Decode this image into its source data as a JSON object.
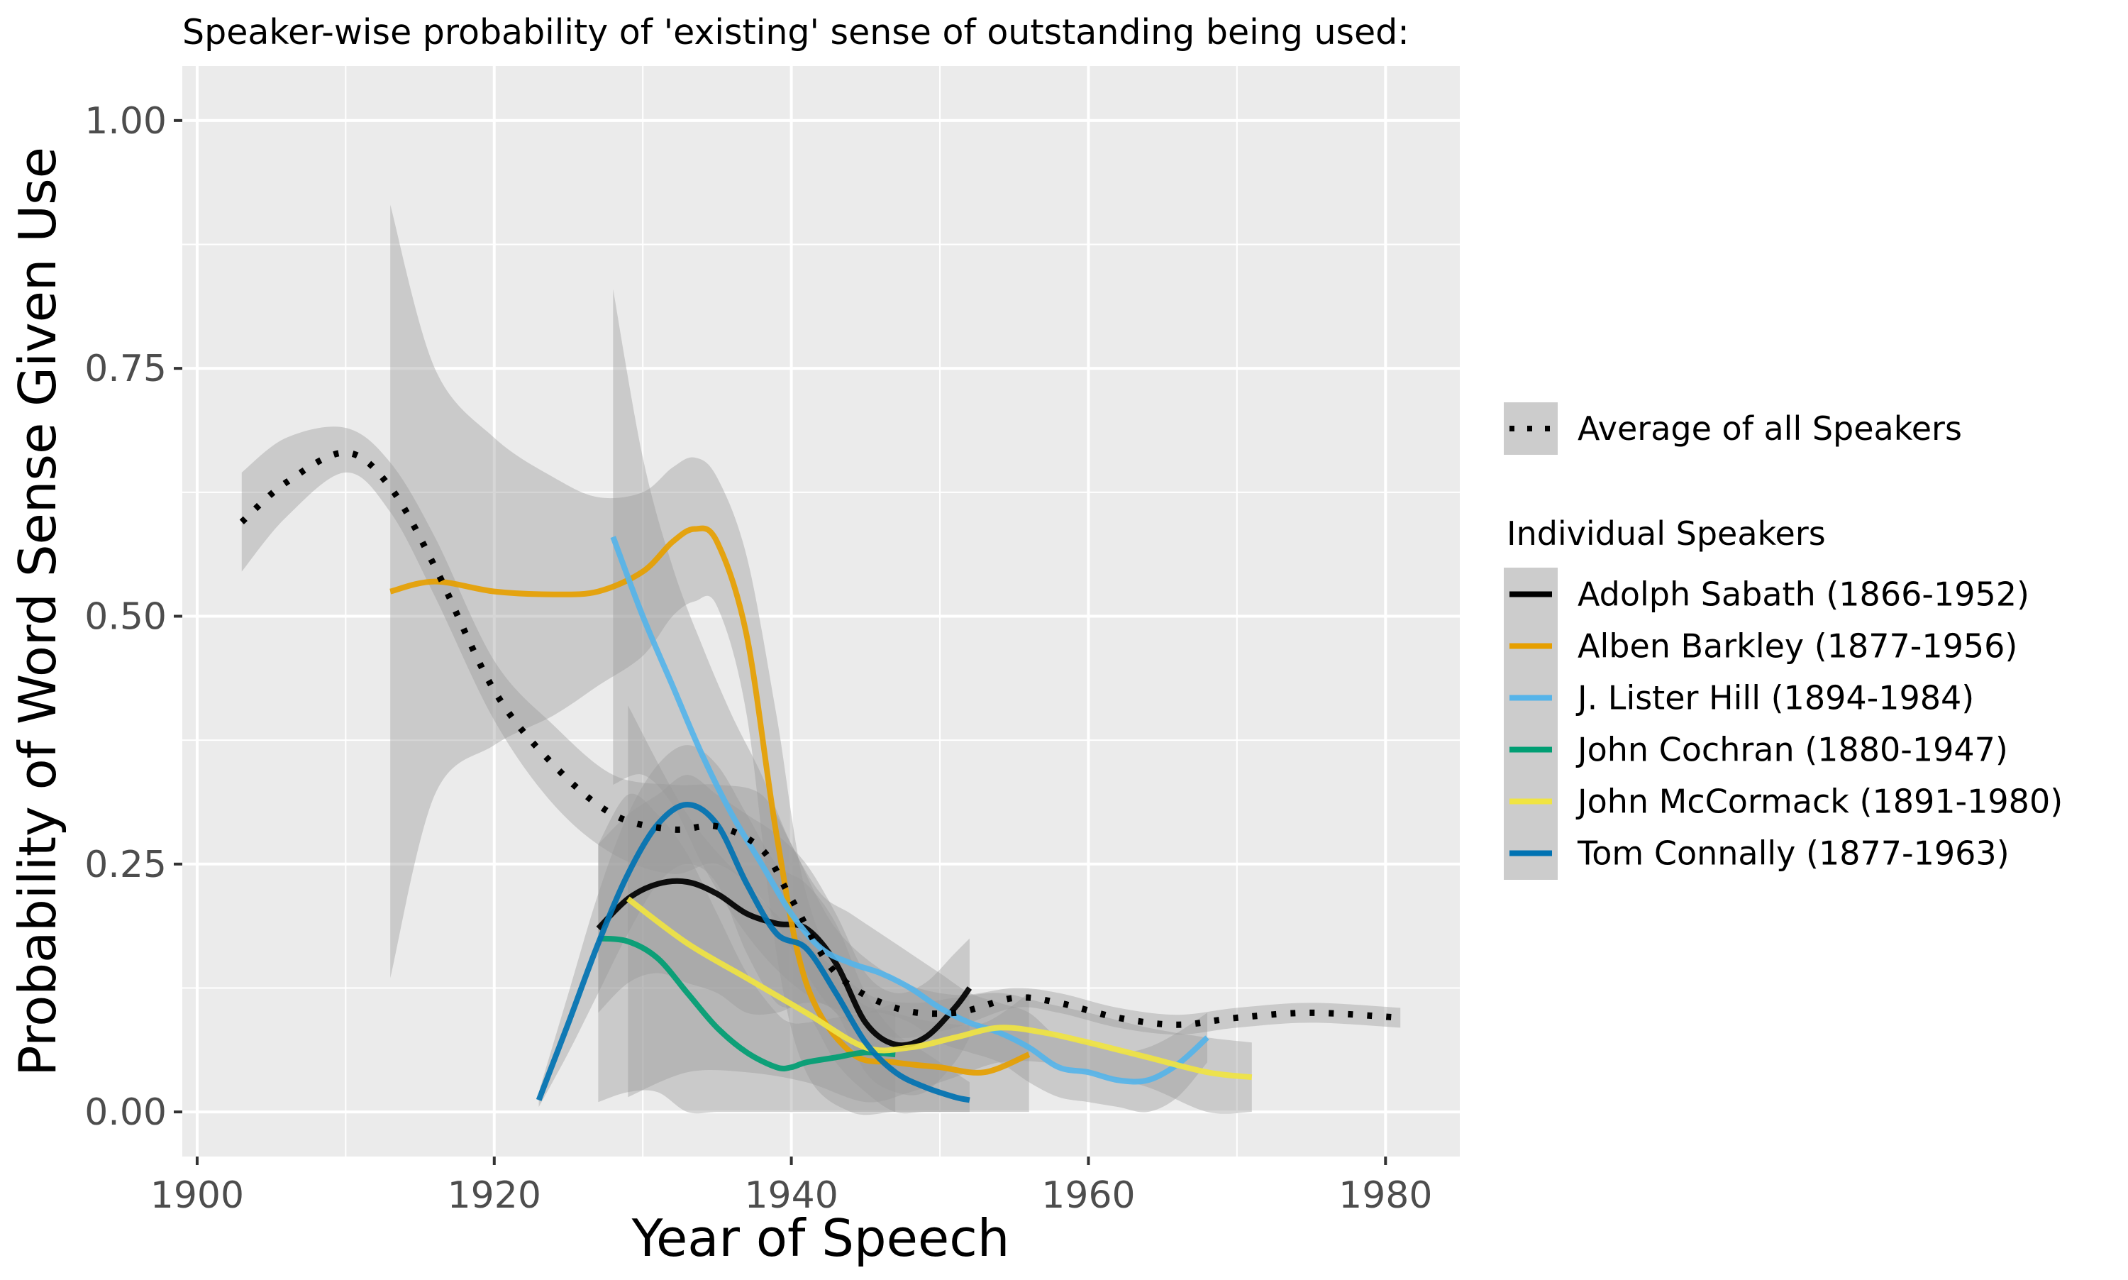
{
  "chart_data": {
    "type": "line",
    "title": "Speaker-wise probability of 'existing' sense of outstanding being used:",
    "xlabel": "Year of Speech",
    "ylabel": "Probability of Word Sense Given Use",
    "xlim": [
      1899,
      1985
    ],
    "ylim": [
      -0.045,
      1.055
    ],
    "x_ticks": [
      1900,
      1920,
      1940,
      1960,
      1980
    ],
    "x_tick_labels": [
      "1900",
      "1920",
      "1940",
      "1960",
      "1980"
    ],
    "y_ticks": [
      0,
      0.25,
      0.5,
      0.75,
      1
    ],
    "y_tick_labels": [
      "0.00",
      "0.25",
      "0.50",
      "0.75",
      "1.00"
    ],
    "grid": true,
    "legend_position": "right",
    "average_legend_label": "Average of all Speakers",
    "legend_title": "Individual Speakers",
    "average": {
      "name": "Average of all Speakers",
      "color": "#000000",
      "x": [
        1903,
        1906,
        1910,
        1913,
        1916,
        1920,
        1924,
        1928,
        1932,
        1935,
        1938,
        1940,
        1943,
        1947,
        1951,
        1955,
        1958,
        1962,
        1966,
        1970,
        1975,
        1981
      ],
      "y": [
        0.595,
        0.635,
        0.665,
        0.63,
        0.55,
        0.425,
        0.35,
        0.3,
        0.285,
        0.288,
        0.265,
        0.215,
        0.14,
        0.105,
        0.1,
        0.115,
        0.11,
        0.095,
        0.088,
        0.095,
        0.1,
        0.095
      ],
      "ci_upper": [
        0.645,
        0.68,
        0.69,
        0.655,
        0.58,
        0.455,
        0.39,
        0.34,
        0.33,
        0.33,
        0.32,
        0.27,
        0.185,
        0.135,
        0.118,
        0.125,
        0.12,
        0.105,
        0.098,
        0.105,
        0.11,
        0.105
      ],
      "ci_lower": [
        0.545,
        0.6,
        0.645,
        0.605,
        0.52,
        0.395,
        0.31,
        0.26,
        0.24,
        0.25,
        0.215,
        0.165,
        0.1,
        0.075,
        0.085,
        0.105,
        0.1,
        0.085,
        0.078,
        0.085,
        0.09,
        0.085
      ]
    },
    "series": [
      {
        "name": "Adolph Sabath (1866-1952)",
        "color": "#000000",
        "x": [
          1927,
          1929,
          1931,
          1933,
          1935,
          1937,
          1939,
          1941,
          1943,
          1945,
          1947,
          1949,
          1951,
          1952
        ],
        "y": [
          0.185,
          0.215,
          0.23,
          0.232,
          0.22,
          0.2,
          0.19,
          0.185,
          0.15,
          0.09,
          0.068,
          0.075,
          0.105,
          0.125
        ],
        "ci_upper": [
          0.27,
          0.3,
          0.32,
          0.34,
          0.32,
          0.3,
          0.28,
          0.25,
          0.2,
          0.14,
          0.12,
          0.13,
          0.16,
          0.175
        ],
        "ci_lower": [
          0.1,
          0.13,
          0.14,
          0.13,
          0.12,
          0.1,
          0.1,
          0.11,
          0.1,
          0.04,
          0.02,
          0.02,
          0.05,
          0.075
        ]
      },
      {
        "name": "Alben Barkley (1877-1956)",
        "color": "#E69F00",
        "x": [
          1913,
          1916,
          1920,
          1924,
          1927,
          1930,
          1932,
          1933.5,
          1935,
          1937,
          1939,
          1941,
          1944,
          1947,
          1950,
          1953,
          1956
        ],
        "y": [
          0.525,
          0.535,
          0.525,
          0.522,
          0.525,
          0.545,
          0.575,
          0.588,
          0.575,
          0.48,
          0.28,
          0.13,
          0.06,
          0.05,
          0.045,
          0.04,
          0.058
        ],
        "ci_upper": [
          0.915,
          0.75,
          0.68,
          0.64,
          0.62,
          0.625,
          0.65,
          0.66,
          0.64,
          0.56,
          0.4,
          0.22,
          0.12,
          0.1,
          0.09,
          0.09,
          0.12
        ],
        "ci_lower": [
          0.135,
          0.32,
          0.37,
          0.4,
          0.43,
          0.46,
          0.5,
          0.515,
          0.51,
          0.4,
          0.16,
          0.04,
          0.0,
          0.0,
          0.0,
          0.0,
          0.0
        ]
      },
      {
        "name": "J. Lister Hill (1894-1984)",
        "color": "#56B4E9",
        "x": [
          1928,
          1930,
          1932,
          1934,
          1936,
          1938,
          1940,
          1942,
          1944,
          1946,
          1948,
          1950,
          1952,
          1954,
          1956,
          1958,
          1960,
          1962,
          1964,
          1966,
          1968
        ],
        "y": [
          0.58,
          0.5,
          0.43,
          0.36,
          0.3,
          0.25,
          0.2,
          0.165,
          0.15,
          0.14,
          0.125,
          0.105,
          0.09,
          0.08,
          0.065,
          0.045,
          0.04,
          0.032,
          0.032,
          0.048,
          0.075
        ],
        "ci_upper": [
          0.83,
          0.66,
          0.55,
          0.47,
          0.4,
          0.34,
          0.27,
          0.22,
          0.2,
          0.18,
          0.16,
          0.14,
          0.12,
          0.11,
          0.1,
          0.075,
          0.07,
          0.06,
          0.065,
          0.08,
          0.1
        ],
        "ci_lower": [
          0.33,
          0.34,
          0.31,
          0.25,
          0.2,
          0.16,
          0.13,
          0.11,
          0.1,
          0.1,
          0.09,
          0.07,
          0.06,
          0.05,
          0.03,
          0.015,
          0.01,
          0.005,
          0.0,
          0.015,
          0.05
        ]
      },
      {
        "name": "John Cochran (1880-1947)",
        "color": "#009E73",
        "x": [
          1927,
          1929,
          1931,
          1933,
          1935,
          1937,
          1939,
          1940,
          1941,
          1943,
          1945,
          1947
        ],
        "y": [
          0.175,
          0.172,
          0.155,
          0.12,
          0.085,
          0.06,
          0.045,
          0.045,
          0.05,
          0.055,
          0.06,
          0.058
        ],
        "ci_upper": [
          0.27,
          0.32,
          0.3,
          0.26,
          0.2,
          0.14,
          0.1,
          0.09,
          0.09,
          0.095,
          0.1,
          0.11
        ],
        "ci_lower": [
          0.01,
          0.02,
          0.02,
          0.0,
          0.0,
          0.0,
          0.0,
          0.0,
          0.0,
          0.0,
          0.0,
          0.0
        ]
      },
      {
        "name": "John McCormack (1891-1980)",
        "color": "#F0E442",
        "x": [
          1929,
          1933,
          1937,
          1941,
          1945,
          1948,
          1951,
          1954,
          1957,
          1960,
          1964,
          1968,
          1971
        ],
        "y": [
          0.215,
          0.17,
          0.135,
          0.1,
          0.065,
          0.065,
          0.075,
          0.085,
          0.08,
          0.07,
          0.055,
          0.04,
          0.035
        ],
        "ci_upper": [
          0.41,
          0.3,
          0.23,
          0.17,
          0.12,
          0.11,
          0.115,
          0.12,
          0.11,
          0.1,
          0.085,
          0.075,
          0.07
        ],
        "ci_lower": [
          0.015,
          0.04,
          0.04,
          0.03,
          0.01,
          0.02,
          0.035,
          0.05,
          0.05,
          0.04,
          0.025,
          0.0,
          0.0
        ]
      },
      {
        "name": "Tom Connally (1877-1963)",
        "color": "#0072B2",
        "x": [
          1923,
          1925,
          1927,
          1929,
          1931,
          1933,
          1935,
          1937,
          1939,
          1941,
          1943,
          1945,
          1947,
          1949,
          1951,
          1952
        ],
        "y": [
          0.012,
          0.09,
          0.17,
          0.24,
          0.29,
          0.31,
          0.29,
          0.23,
          0.18,
          0.165,
          0.12,
          0.07,
          0.04,
          0.025,
          0.015,
          0.012
        ],
        "ci_upper": [
          0.02,
          0.12,
          0.22,
          0.3,
          0.35,
          0.37,
          0.35,
          0.3,
          0.25,
          0.23,
          0.19,
          0.12,
          0.08,
          0.06,
          0.04,
          0.03
        ],
        "ci_lower": [
          0.005,
          0.06,
          0.12,
          0.18,
          0.23,
          0.25,
          0.23,
          0.16,
          0.11,
          0.1,
          0.05,
          0.02,
          0.0,
          0.0,
          0.0,
          0.0
        ]
      }
    ]
  }
}
